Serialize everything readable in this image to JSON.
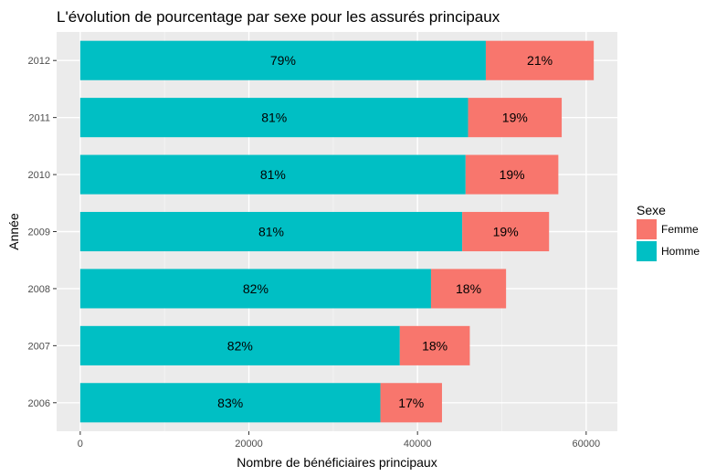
{
  "chart_data": {
    "type": "bar",
    "orientation": "horizontal",
    "stacked": true,
    "title": "L'évolution de pourcentage par sexe pour les assurés principaux",
    "xlabel": "Nombre de bénéficiaires principaux",
    "ylabel": "Année",
    "categories": [
      "2006",
      "2007",
      "2008",
      "2009",
      "2010",
      "2011",
      "2012"
    ],
    "xlim": [
      -2800,
      63700
    ],
    "x_ticks": [
      0,
      20000,
      40000,
      60000
    ],
    "x_tick_labels": [
      "0",
      "20000",
      "40000",
      "60000"
    ],
    "grid": true,
    "legend": {
      "title": "Sexe",
      "position": "right",
      "entries": [
        {
          "label": "Femme",
          "color": "#F8766D"
        },
        {
          "label": "Homme",
          "color": "#00BFC4"
        }
      ]
    },
    "series": [
      {
        "name": "Homme",
        "color": "#00BFC4",
        "values": [
          35600,
          37900,
          41600,
          45300,
          45700,
          46000,
          48100
        ],
        "labels": [
          "83%",
          "82%",
          "82%",
          "81%",
          "81%",
          "81%",
          "79%"
        ]
      },
      {
        "name": "Femme",
        "color": "#F8766D",
        "values": [
          7300,
          8300,
          8900,
          10300,
          11000,
          11100,
          12800
        ],
        "labels": [
          "17%",
          "18%",
          "18%",
          "19%",
          "19%",
          "19%",
          "21%"
        ]
      }
    ]
  }
}
